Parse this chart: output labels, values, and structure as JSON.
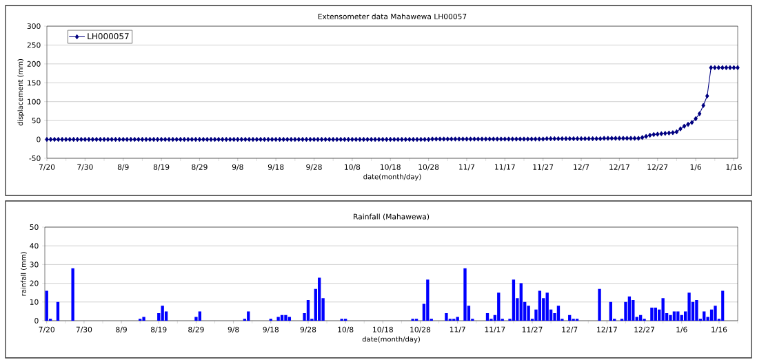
{
  "chart_data": [
    {
      "type": "line",
      "title": "Extensometer data Mahawewa LH00057",
      "xlabel": "date(month/day)",
      "ylabel": "displacement (mm)",
      "categories": [
        "7/20",
        null,
        null,
        null,
        null,
        null,
        null,
        null,
        null,
        null,
        "7/30",
        null,
        null,
        null,
        null,
        null,
        null,
        null,
        null,
        null,
        "8/9",
        null,
        null,
        null,
        null,
        null,
        null,
        null,
        null,
        null,
        "8/19",
        null,
        null,
        null,
        null,
        null,
        null,
        null,
        null,
        null,
        "8/29",
        null,
        null,
        null,
        null,
        null,
        null,
        null,
        null,
        null,
        "9/8",
        null,
        null,
        null,
        null,
        null,
        null,
        null,
        null,
        null,
        "9/18",
        null,
        null,
        null,
        null,
        null,
        null,
        null,
        null,
        null,
        "9/28",
        null,
        null,
        null,
        null,
        null,
        null,
        null,
        null,
        null,
        "10/8",
        null,
        null,
        null,
        null,
        null,
        null,
        null,
        null,
        null,
        "10/18",
        null,
        null,
        null,
        null,
        null,
        null,
        null,
        null,
        null,
        "10/28",
        null,
        null,
        null,
        null,
        null,
        null,
        null,
        null,
        null,
        "11/7",
        null,
        null,
        null,
        null,
        null,
        null,
        null,
        null,
        null,
        "11/17",
        null,
        null,
        null,
        null,
        null,
        null,
        null,
        null,
        null,
        "11/27",
        null,
        null,
        null,
        null,
        null,
        null,
        null,
        null,
        null,
        "12/7",
        null,
        null,
        null,
        null,
        null,
        null,
        null,
        null,
        null,
        "12/17",
        null,
        null,
        null,
        null,
        null,
        null,
        null,
        null,
        null,
        "12/27",
        null,
        null,
        null,
        null,
        null,
        null,
        null,
        null,
        null,
        "1/6",
        null,
        null,
        null,
        null,
        null,
        null,
        null,
        null,
        null,
        "1/16",
        null
      ],
      "series": [
        {
          "name": "LH000057",
          "color": "#000080",
          "values": [
            0,
            0,
            0,
            0,
            0,
            0,
            0,
            0,
            0,
            0,
            0,
            0,
            0,
            0,
            0,
            0,
            0,
            0,
            0,
            0,
            0,
            0,
            0,
            0,
            0,
            0,
            0,
            0,
            0,
            0,
            0,
            0,
            0,
            0,
            0,
            0,
            0,
            0,
            0,
            0,
            0,
            0,
            0,
            0,
            0,
            0,
            0,
            0,
            0,
            0,
            0,
            0,
            0,
            0,
            0,
            0,
            0,
            0,
            0,
            0,
            0,
            0,
            0,
            0,
            0,
            0,
            0,
            0,
            0,
            0,
            0,
            0,
            0,
            0,
            0,
            0,
            0,
            0,
            0,
            0,
            0,
            0,
            0,
            0,
            0,
            0,
            0,
            0,
            0,
            0,
            0,
            0,
            0,
            0,
            0,
            0,
            0,
            0,
            0,
            0,
            0,
            1,
            1,
            1,
            1,
            1,
            1,
            1,
            1,
            1,
            1,
            1,
            1,
            1,
            1,
            1,
            1,
            1,
            1,
            1,
            1,
            1,
            1,
            1,
            1,
            1,
            1,
            1,
            1,
            1,
            1,
            2,
            2,
            2,
            2,
            2,
            2,
            2,
            2,
            2,
            2,
            2,
            2,
            2,
            2,
            2,
            3,
            3,
            3,
            3,
            3,
            3,
            3,
            3,
            3,
            3,
            5,
            8,
            11,
            13,
            14,
            15,
            16,
            17,
            18,
            20,
            28,
            35,
            40,
            45,
            55,
            68,
            90,
            115,
            190,
            190,
            190,
            190,
            190,
            190,
            190,
            190
          ]
        }
      ],
      "ylim": [
        -50,
        300
      ],
      "yticks": [
        -50,
        0,
        50,
        100,
        150,
        200,
        250,
        300
      ],
      "grid": "y",
      "legend": "top left",
      "marker": "diamond",
      "line_style": "solid"
    },
    {
      "type": "bar",
      "title": "Rainfall (Mahawewa)",
      "xlabel": "date(month/day)",
      "ylabel": "rainfall (mm)",
      "color": "#0000ff",
      "categories": [
        "7/20",
        null,
        null,
        null,
        null,
        null,
        null,
        null,
        null,
        null,
        "7/30",
        null,
        null,
        null,
        null,
        null,
        null,
        null,
        null,
        null,
        "8/9",
        null,
        null,
        null,
        null,
        null,
        null,
        null,
        null,
        null,
        "8/19",
        null,
        null,
        null,
        null,
        null,
        null,
        null,
        null,
        null,
        "8/29",
        null,
        null,
        null,
        null,
        null,
        null,
        null,
        null,
        null,
        "9/8",
        null,
        null,
        null,
        null,
        null,
        null,
        null,
        null,
        null,
        "9/18",
        null,
        null,
        null,
        null,
        null,
        null,
        null,
        null,
        null,
        "9/28",
        null,
        null,
        null,
        null,
        null,
        null,
        null,
        null,
        null,
        "10/8",
        null,
        null,
        null,
        null,
        null,
        null,
        null,
        null,
        null,
        "10/18",
        null,
        null,
        null,
        null,
        null,
        null,
        null,
        null,
        null,
        "10/28",
        null,
        null,
        null,
        null,
        null,
        null,
        null,
        null,
        null,
        "11/7",
        null,
        null,
        null,
        null,
        null,
        null,
        null,
        null,
        null,
        "11/17",
        null,
        null,
        null,
        null,
        null,
        null,
        null,
        null,
        null,
        "11/27",
        null,
        null,
        null,
        null,
        null,
        null,
        null,
        null,
        null,
        "12/7",
        null,
        null,
        null,
        null,
        null,
        null,
        null,
        null,
        null,
        "12/17",
        null,
        null,
        null,
        null,
        null,
        null,
        null,
        null,
        null,
        "12/27",
        null,
        null,
        null,
        null,
        null,
        null,
        null,
        null,
        null,
        "1/6",
        null,
        null,
        null,
        null,
        null,
        null,
        null,
        null,
        null,
        "1/16",
        null
      ],
      "values": [
        16,
        1,
        null,
        10,
        null,
        null,
        null,
        28,
        null,
        null,
        null,
        null,
        null,
        null,
        null,
        null,
        null,
        null,
        null,
        null,
        null,
        null,
        null,
        null,
        null,
        1,
        2,
        null,
        null,
        null,
        4,
        8,
        5,
        null,
        null,
        null,
        null,
        null,
        null,
        null,
        2,
        5,
        null,
        null,
        null,
        null,
        null,
        null,
        null,
        null,
        null,
        null,
        null,
        1,
        5,
        null,
        null,
        null,
        null,
        null,
        1,
        null,
        2,
        3,
        3,
        2,
        null,
        null,
        null,
        4,
        11,
        1,
        17,
        23,
        12,
        null,
        null,
        null,
        null,
        1,
        1,
        null,
        null,
        null,
        null,
        null,
        null,
        null,
        null,
        null,
        null,
        null,
        null,
        null,
        null,
        null,
        null,
        null,
        1,
        1,
        null,
        9,
        22,
        1,
        null,
        null,
        null,
        4,
        1,
        1,
        2,
        null,
        28,
        8,
        1,
        null,
        null,
        null,
        4,
        1,
        3,
        15,
        1,
        null,
        1,
        22,
        12,
        20,
        10,
        8,
        1,
        6,
        16,
        12,
        15,
        6,
        4,
        8,
        1,
        null,
        3,
        1,
        1,
        null,
        null,
        null,
        null,
        null,
        17,
        null,
        null,
        10,
        1,
        null,
        1,
        10,
        13,
        11,
        2,
        3,
        1,
        null,
        7,
        7,
        6,
        12,
        4,
        3,
        5,
        5,
        3,
        5,
        15,
        10,
        11,
        1,
        5,
        2,
        6,
        8,
        1,
        16
      ],
      "ylim": [
        0,
        50
      ],
      "yticks": [
        0,
        10,
        20,
        30,
        40,
        50
      ],
      "grid": "y"
    }
  ]
}
